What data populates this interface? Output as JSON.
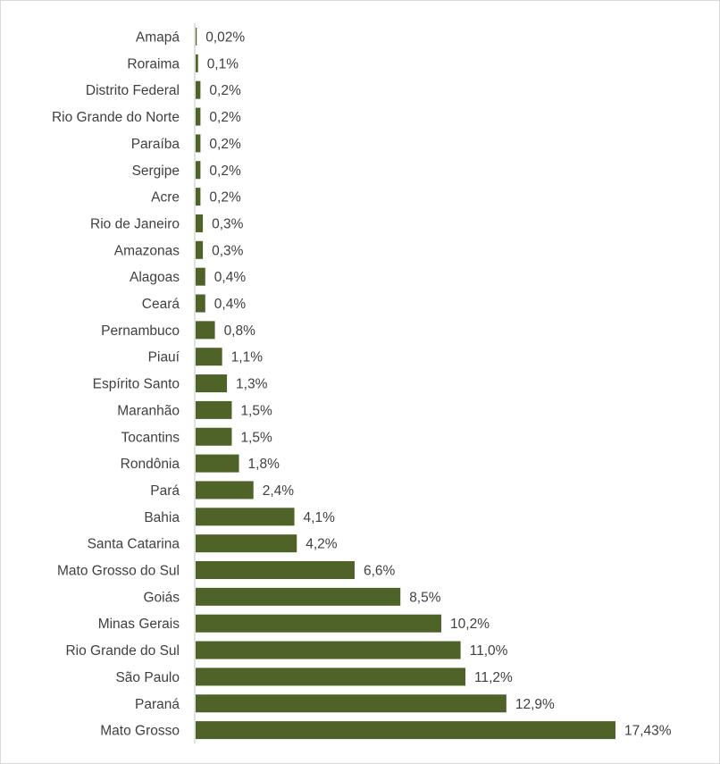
{
  "chart_data": {
    "type": "bar",
    "orientation": "horizontal",
    "categories": [
      "Amapá",
      "Roraima",
      "Distrito Federal",
      "Rio Grande do Norte",
      "Paraíba",
      "Sergipe",
      "Acre",
      "Rio de Janeiro",
      "Amazonas",
      "Alagoas",
      "Ceará",
      "Pernambuco",
      "Piauí",
      "Espírito Santo",
      "Maranhão",
      "Tocantins",
      "Rondônia",
      "Pará",
      "Bahia",
      "Santa Catarina",
      "Mato Grosso do Sul",
      "Goiás",
      "Minas Gerais",
      "Rio Grande do Sul",
      "São Paulo",
      "Paraná",
      "Mato Grosso"
    ],
    "values": [
      0.02,
      0.1,
      0.2,
      0.2,
      0.2,
      0.2,
      0.2,
      0.3,
      0.3,
      0.4,
      0.4,
      0.8,
      1.1,
      1.3,
      1.5,
      1.5,
      1.8,
      2.4,
      4.1,
      4.2,
      6.6,
      8.5,
      10.2,
      11.0,
      11.2,
      12.9,
      17.43
    ],
    "data_labels": [
      "0,02%",
      "0,1%",
      "0,2%",
      "0,2%",
      "0,2%",
      "0,2%",
      "0,2%",
      "0,3%",
      "0,3%",
      "0,4%",
      "0,4%",
      "0,8%",
      "1,1%",
      "1,3%",
      "1,5%",
      "1,5%",
      "1,8%",
      "2,4%",
      "4,1%",
      "4,2%",
      "6,6%",
      "8,5%",
      "10,2%",
      "11,0%",
      "11,2%",
      "12,9%",
      "17,43%"
    ],
    "title": "",
    "xlabel": "",
    "ylabel": "",
    "xlim": [
      0,
      17.43
    ],
    "grid": false,
    "legend": "none",
    "bar_color": "#4f6228",
    "axis_color": "#d9d9d9"
  }
}
